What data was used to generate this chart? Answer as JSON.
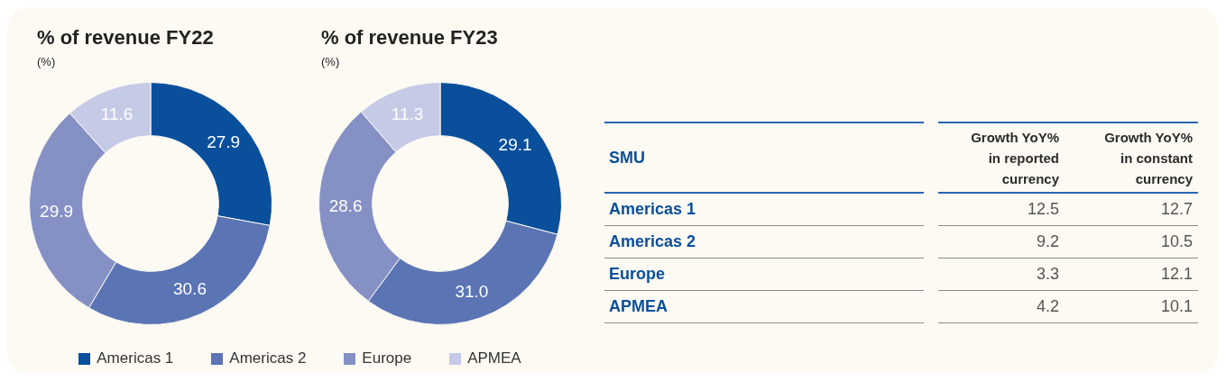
{
  "chart_data": [
    {
      "type": "donut",
      "subtitle": "(%)",
      "categories": [
        "Americas 1",
        "Americas 2",
        "Europe",
        "APMEA"
      ],
      "colors": [
        "#0a4f9c",
        "#5a74b4",
        "#8591c4",
        "#c5cae6"
      ],
      "series": [
        {
          "name": "% of revenue FY22",
          "values": [
            27.9,
            30.6,
            29.9,
            11.6
          ]
        },
        {
          "name": "% of revenue FY23",
          "values": [
            29.1,
            31.0,
            28.6,
            11.3
          ],
          "value_labels": [
            "29.1",
            "31.0",
            "28.6",
            "11.3"
          ]
        }
      ],
      "data_labels": true,
      "legend": "bottom"
    },
    {
      "type": "other",
      "ylabel": "SMU",
      "categories": [
        "Americas 1",
        "Americas 2",
        "Europe",
        "APMEA"
      ],
      "series": [
        {
          "name": "Growth YoY% in reported currency",
          "values": [
            12.5,
            9.2,
            3.3,
            4.2
          ]
        },
        {
          "name": "Growth YoY% in constant currency",
          "values": [
            12.7,
            10.5,
            12.1,
            10.1
          ]
        }
      ],
      "data_labels": true
    }
  ]
}
